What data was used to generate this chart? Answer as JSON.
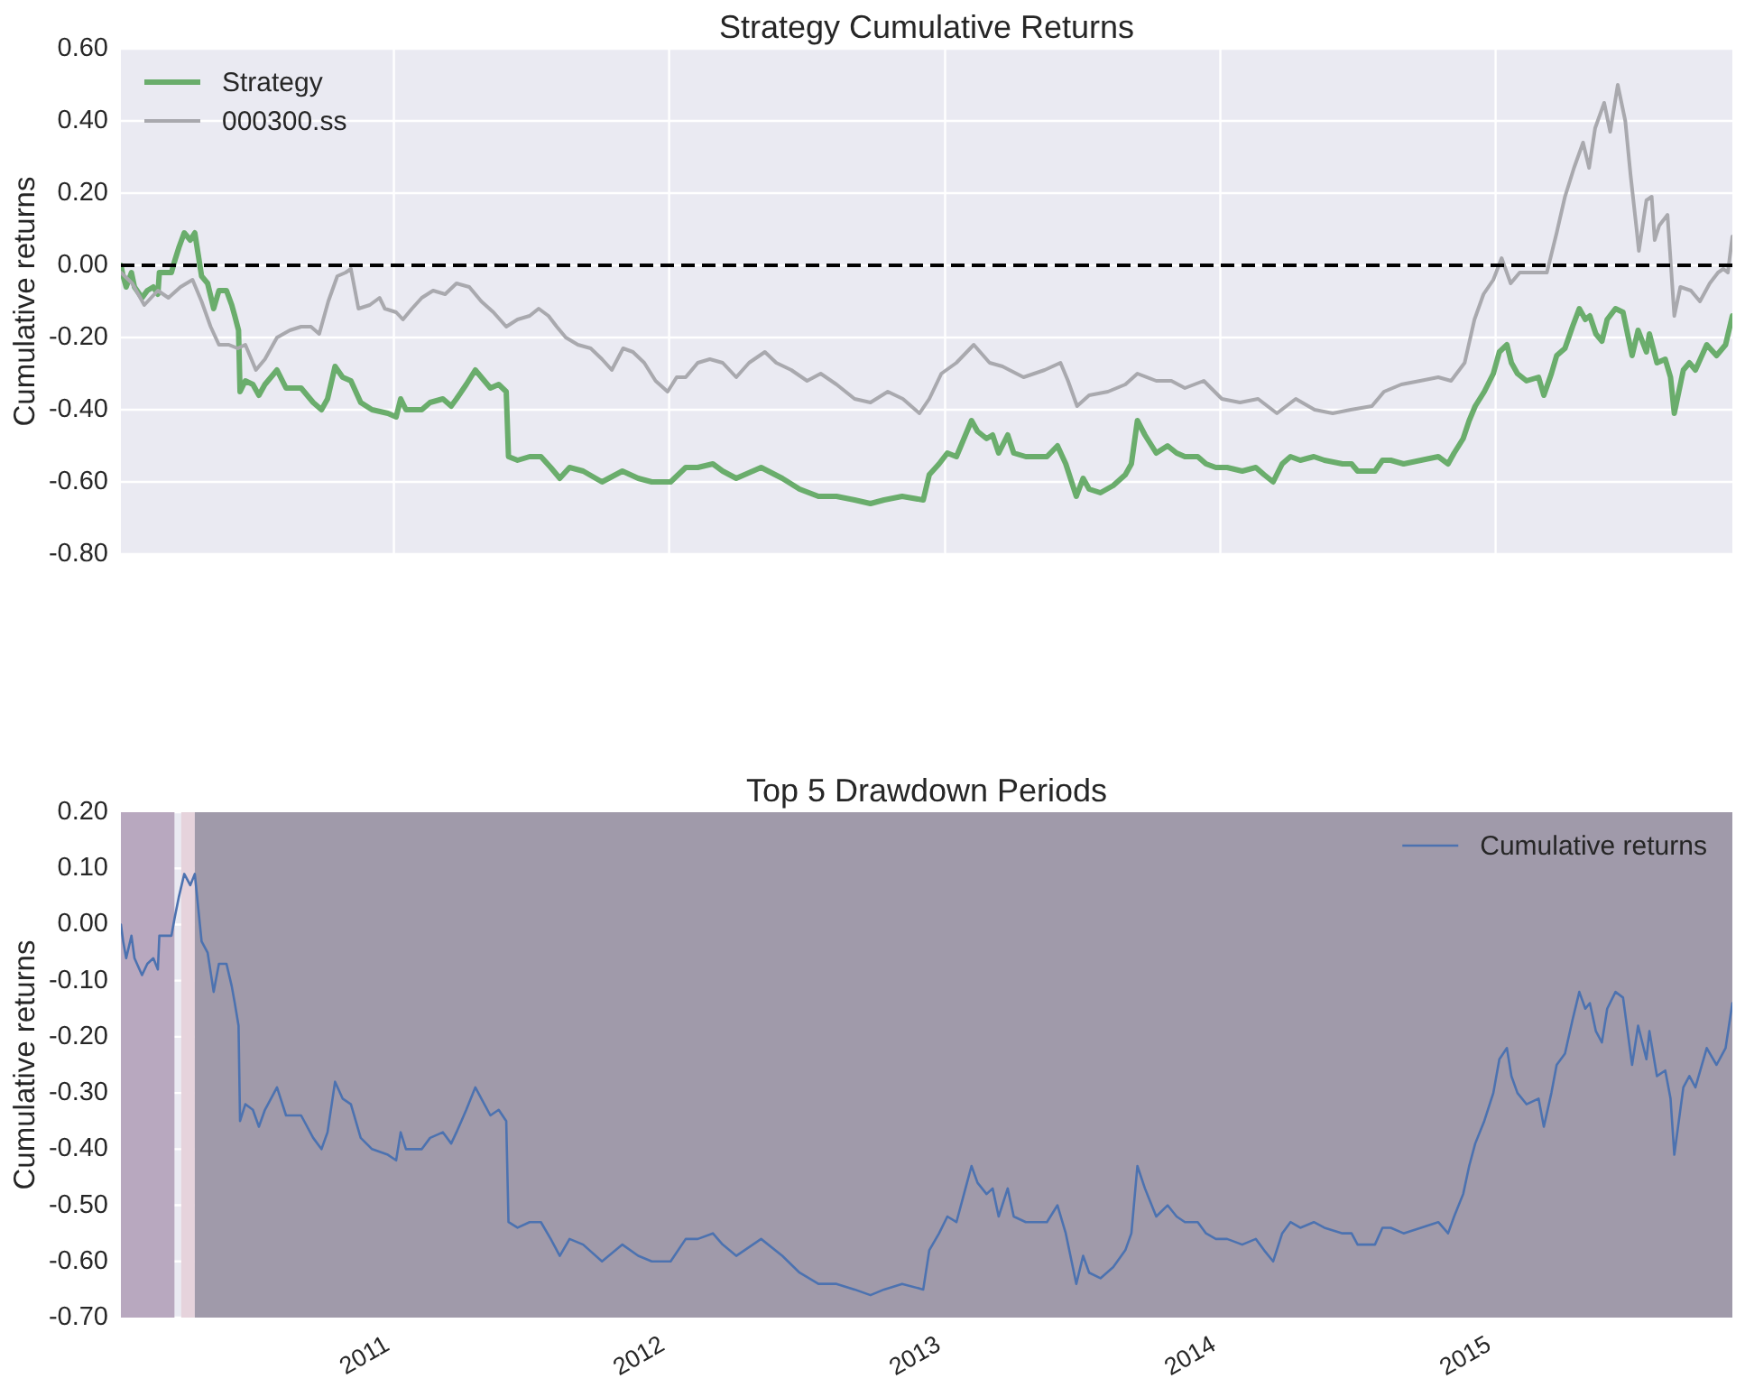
{
  "chart_data": [
    {
      "type": "line",
      "title": "Strategy Cumulative Returns",
      "ylabel": "Cumulative returns",
      "xlim": [
        "2010-01-04",
        "2015-11-11"
      ],
      "xticks": [
        "2011",
        "2012",
        "2013",
        "2014",
        "2015"
      ],
      "ylim": [
        -0.8,
        0.6
      ],
      "yticks": [
        {
          "value": -0.8,
          "label": "-0.80"
        },
        {
          "value": -0.6,
          "label": "-0.60"
        },
        {
          "value": -0.4,
          "label": "-0.40"
        },
        {
          "value": -0.2,
          "label": "-0.20"
        },
        {
          "value": 0,
          "label": "0.00"
        },
        {
          "value": 0.2,
          "label": "0.20"
        },
        {
          "value": 0.4,
          "label": "0.40"
        },
        {
          "value": 0.6,
          "label": "0.60"
        }
      ],
      "tick_labels": "y",
      "grid": true,
      "legend": "top left",
      "ref_lines": [
        {
          "axis": "y",
          "value": 0,
          "color": "#000000",
          "line_style": "dashed"
        }
      ],
      "series": [
        {
          "name": "Strategy",
          "color": "#6aad6c",
          "x": [
            "2010-01-04",
            "2010-01-07",
            "2010-01-11",
            "2010-01-18",
            "2010-01-22",
            "2010-02-01",
            "2010-02-08",
            "2010-02-16",
            "2010-02-22",
            "2010-02-24",
            "2010-03-12",
            "2010-03-16",
            "2010-03-22",
            "2010-03-29",
            "2010-04-06",
            "2010-04-12",
            "2010-04-21",
            "2010-04-29",
            "2010-05-07",
            "2010-05-14",
            "2010-05-24",
            "2010-05-31",
            "2010-06-04",
            "2010-06-09",
            "2010-06-11",
            "2010-06-18",
            "2010-06-28",
            "2010-07-06",
            "2010-07-14",
            "2010-07-30",
            "2010-08-11",
            "2010-08-31",
            "2010-09-16",
            "2010-09-27",
            "2010-10-05",
            "2010-10-15",
            "2010-10-25",
            "2010-11-05",
            "2010-11-18",
            "2010-12-03",
            "2010-12-24",
            "2011-01-04",
            "2011-01-10",
            "2011-01-17",
            "2011-02-07",
            "2011-02-18",
            "2011-03-07",
            "2011-03-18",
            "2011-03-25",
            "2011-04-07",
            "2011-04-19",
            "2011-04-27",
            "2011-05-09",
            "2011-05-20",
            "2011-05-30",
            "2011-06-02",
            "2011-06-14",
            "2011-06-30",
            "2011-07-15",
            "2011-07-28",
            "2011-08-09",
            "2011-08-22",
            "2011-09-09",
            "2011-10-04",
            "2011-10-31",
            "2011-11-21",
            "2011-12-09",
            "2012-01-03",
            "2012-01-23",
            "2012-02-08",
            "2012-02-28",
            "2012-03-12",
            "2012-03-30",
            "2012-05-02",
            "2012-05-30",
            "2012-06-22",
            "2012-07-17",
            "2012-08-10",
            "2012-09-03",
            "2012-09-24",
            "2012-10-12",
            "2012-11-05",
            "2012-12-03",
            "2012-12-11",
            "2012-12-24",
            "2013-01-04",
            "2013-01-16",
            "2013-01-28",
            "2013-02-05",
            "2013-02-13",
            "2013-02-25",
            "2013-03-05",
            "2013-03-13",
            "2013-03-25",
            "2013-04-02",
            "2013-04-18",
            "2013-04-30",
            "2013-05-16",
            "2013-05-30",
            "2013-06-10",
            "2013-06-24",
            "2013-07-03",
            "2013-07-11",
            "2013-07-26",
            "2013-08-12",
            "2013-08-28",
            "2013-09-05",
            "2013-09-13",
            "2013-09-23",
            "2013-10-08",
            "2013-10-23",
            "2013-11-04",
            "2013-11-15",
            "2013-12-02",
            "2013-12-13",
            "2013-12-26",
            "2014-01-10",
            "2014-01-30",
            "2014-02-17",
            "2014-02-28",
            "2014-03-12",
            "2014-03-24",
            "2014-04-04",
            "2014-04-17",
            "2014-05-05",
            "2014-05-19",
            "2014-06-12",
            "2014-06-24",
            "2014-07-02",
            "2014-07-25",
            "2014-08-04",
            "2014-08-15",
            "2014-09-01",
            "2014-09-24",
            "2014-10-17",
            "2014-10-30",
            "2014-11-07",
            "2014-11-19",
            "2014-11-27",
            "2014-12-05",
            "2014-12-17",
            "2014-12-29",
            "2015-01-06",
            "2015-01-16",
            "2015-01-22",
            "2015-01-30",
            "2015-02-11",
            "2015-02-27",
            "2015-03-06",
            "2015-03-16",
            "2015-03-23",
            "2015-04-03",
            "2015-04-13",
            "2015-04-22",
            "2015-04-30",
            "2015-05-06",
            "2015-05-14",
            "2015-05-22",
            "2015-05-29",
            "2015-06-09",
            "2015-06-19",
            "2015-06-25",
            "2015-07-01",
            "2015-07-09",
            "2015-07-20",
            "2015-07-24",
            "2015-08-03",
            "2015-08-14",
            "2015-08-21",
            "2015-08-26",
            "2015-09-07",
            "2015-09-15",
            "2015-09-23",
            "2015-10-08",
            "2015-10-21",
            "2015-11-02",
            "2015-11-11"
          ],
          "values": [
            0.0,
            -0.03,
            -0.06,
            -0.02,
            -0.06,
            -0.09,
            -0.07,
            -0.06,
            -0.08,
            -0.02,
            -0.02,
            0.01,
            0.05,
            0.09,
            0.07,
            0.09,
            -0.03,
            -0.05,
            -0.12,
            -0.07,
            -0.07,
            -0.11,
            -0.14,
            -0.18,
            -0.35,
            -0.32,
            -0.33,
            -0.36,
            -0.33,
            -0.29,
            -0.34,
            -0.34,
            -0.38,
            -0.4,
            -0.37,
            -0.28,
            -0.31,
            -0.32,
            -0.38,
            -0.4,
            -0.41,
            -0.42,
            -0.37,
            -0.4,
            -0.4,
            -0.38,
            -0.37,
            -0.39,
            -0.37,
            -0.33,
            -0.29,
            -0.31,
            -0.34,
            -0.33,
            -0.35,
            -0.53,
            -0.54,
            -0.53,
            -0.53,
            -0.56,
            -0.59,
            -0.56,
            -0.57,
            -0.6,
            -0.57,
            -0.59,
            -0.6,
            -0.6,
            -0.56,
            -0.56,
            -0.55,
            -0.57,
            -0.59,
            -0.56,
            -0.59,
            -0.62,
            -0.64,
            -0.64,
            -0.65,
            -0.66,
            -0.65,
            -0.64,
            -0.65,
            -0.58,
            -0.55,
            -0.52,
            -0.53,
            -0.47,
            -0.43,
            -0.46,
            -0.48,
            -0.47,
            -0.52,
            -0.47,
            -0.52,
            -0.53,
            -0.53,
            -0.53,
            -0.5,
            -0.55,
            -0.64,
            -0.59,
            -0.62,
            -0.63,
            -0.61,
            -0.58,
            -0.55,
            -0.43,
            -0.47,
            -0.52,
            -0.5,
            -0.52,
            -0.53,
            -0.53,
            -0.55,
            -0.56,
            -0.56,
            -0.57,
            -0.56,
            -0.58,
            -0.6,
            -0.55,
            -0.53,
            -0.54,
            -0.53,
            -0.54,
            -0.55,
            -0.55,
            -0.57,
            -0.57,
            -0.54,
            -0.54,
            -0.55,
            -0.54,
            -0.53,
            -0.55,
            -0.52,
            -0.48,
            -0.43,
            -0.39,
            -0.35,
            -0.3,
            -0.24,
            -0.22,
            -0.27,
            -0.3,
            -0.32,
            -0.31,
            -0.36,
            -0.3,
            -0.25,
            -0.23,
            -0.17,
            -0.12,
            -0.15,
            -0.14,
            -0.19,
            -0.21,
            -0.15,
            -0.12,
            -0.13,
            -0.19,
            -0.25,
            -0.18,
            -0.24,
            -0.19,
            -0.27,
            -0.26,
            -0.31,
            -0.41,
            -0.29,
            -0.27,
            -0.29,
            -0.22,
            -0.25,
            -0.22,
            -0.14
          ]
        },
        {
          "name": "000300.ss",
          "color": "#a9a9ae",
          "x": [
            "2010-01-04",
            "2010-01-19",
            "2010-02-04",
            "2010-02-22",
            "2010-03-08",
            "2010-03-24",
            "2010-04-09",
            "2010-04-21",
            "2010-05-03",
            "2010-05-14",
            "2010-05-27",
            "2010-06-08",
            "2010-06-18",
            "2010-07-02",
            "2010-07-14",
            "2010-07-30",
            "2010-08-16",
            "2010-08-31",
            "2010-09-13",
            "2010-09-24",
            "2010-10-06",
            "2010-10-18",
            "2010-10-29",
            "2010-11-05",
            "2010-11-15",
            "2010-11-30",
            "2010-12-13",
            "2010-12-20",
            "2011-01-04",
            "2011-01-13",
            "2011-01-25",
            "2011-02-07",
            "2011-02-22",
            "2011-03-10",
            "2011-03-25",
            "2011-04-11",
            "2011-04-27",
            "2011-05-13",
            "2011-05-30",
            "2011-06-14",
            "2011-06-30",
            "2011-07-12",
            "2011-07-25",
            "2011-08-05",
            "2011-08-17",
            "2011-09-02",
            "2011-09-19",
            "2011-10-04",
            "2011-10-17",
            "2011-11-01",
            "2011-11-14",
            "2011-11-29",
            "2011-12-14",
            "2011-12-30",
            "2012-01-11",
            "2012-01-23",
            "2012-02-08",
            "2012-02-24",
            "2012-03-12",
            "2012-03-30",
            "2012-04-16",
            "2012-05-07",
            "2012-05-22",
            "2012-06-11",
            "2012-07-02",
            "2012-07-20",
            "2012-08-10",
            "2012-09-03",
            "2012-09-24",
            "2012-10-17",
            "2012-11-06",
            "2012-11-28",
            "2012-12-11",
            "2012-12-27",
            "2013-01-16",
            "2013-02-08",
            "2013-03-01",
            "2013-03-18",
            "2013-04-15",
            "2013-05-13",
            "2013-06-03",
            "2013-06-13",
            "2013-06-25",
            "2013-07-11",
            "2013-08-05",
            "2013-08-28",
            "2013-09-13",
            "2013-10-08",
            "2013-10-28",
            "2013-11-15",
            "2013-12-10",
            "2014-01-03",
            "2014-01-27",
            "2014-02-20",
            "2014-03-17",
            "2014-04-11",
            "2014-05-06",
            "2014-05-30",
            "2014-06-23",
            "2014-07-21",
            "2014-08-06",
            "2014-08-29",
            "2014-09-23",
            "2014-10-17",
            "2014-11-03",
            "2014-11-21",
            "2014-12-04",
            "2014-12-16",
            "2014-12-29",
            "2015-01-09",
            "2015-01-21",
            "2015-02-02",
            "2015-02-16",
            "2015-03-10",
            "2015-03-23",
            "2015-04-03",
            "2015-04-15",
            "2015-04-27",
            "2015-05-05",
            "2015-05-13",
            "2015-05-25",
            "2015-06-02",
            "2015-06-12",
            "2015-06-22",
            "2015-06-29",
            "2015-07-07",
            "2015-07-10",
            "2015-07-20",
            "2015-07-27",
            "2015-07-31",
            "2015-08-06",
            "2015-08-17",
            "2015-08-26",
            "2015-09-03",
            "2015-09-17",
            "2015-09-29",
            "2015-10-12",
            "2015-10-23",
            "2015-10-30",
            "2015-11-05",
            "2015-11-11"
          ],
          "values": [
            -0.02,
            -0.05,
            -0.11,
            -0.07,
            -0.09,
            -0.06,
            -0.04,
            -0.1,
            -0.17,
            -0.22,
            -0.22,
            -0.23,
            -0.22,
            -0.29,
            -0.26,
            -0.2,
            -0.18,
            -0.17,
            -0.17,
            -0.19,
            -0.1,
            -0.03,
            -0.02,
            -0.01,
            -0.12,
            -0.11,
            -0.09,
            -0.12,
            -0.13,
            -0.15,
            -0.12,
            -0.09,
            -0.07,
            -0.08,
            -0.05,
            -0.06,
            -0.1,
            -0.13,
            -0.17,
            -0.15,
            -0.14,
            -0.12,
            -0.14,
            -0.17,
            -0.2,
            -0.22,
            -0.23,
            -0.26,
            -0.29,
            -0.23,
            -0.24,
            -0.27,
            -0.32,
            -0.35,
            -0.31,
            -0.31,
            -0.27,
            -0.26,
            -0.27,
            -0.31,
            -0.27,
            -0.24,
            -0.27,
            -0.29,
            -0.32,
            -0.3,
            -0.33,
            -0.37,
            -0.38,
            -0.35,
            -0.37,
            -0.41,
            -0.37,
            -0.3,
            -0.27,
            -0.22,
            -0.27,
            -0.28,
            -0.31,
            -0.29,
            -0.27,
            -0.32,
            -0.39,
            -0.36,
            -0.35,
            -0.33,
            -0.3,
            -0.32,
            -0.32,
            -0.34,
            -0.32,
            -0.37,
            -0.38,
            -0.37,
            -0.41,
            -0.37,
            -0.4,
            -0.41,
            -0.4,
            -0.39,
            -0.35,
            -0.33,
            -0.32,
            -0.31,
            -0.32,
            -0.27,
            -0.15,
            -0.08,
            -0.04,
            0.02,
            -0.05,
            -0.02,
            -0.02,
            -0.02,
            0.09,
            0.19,
            0.27,
            0.34,
            0.27,
            0.38,
            0.45,
            0.37,
            0.5,
            0.4,
            0.25,
            0.1,
            0.04,
            0.18,
            0.19,
            0.07,
            0.11,
            0.14,
            -0.14,
            -0.06,
            -0.07,
            -0.1,
            -0.05,
            -0.02,
            -0.01,
            -0.02,
            0.08
          ]
        }
      ]
    },
    {
      "type": "line",
      "title": "Top 5 Drawdown Periods",
      "ylabel": "Cumulative returns",
      "xlim": [
        "2010-01-04",
        "2015-11-11"
      ],
      "xticks": [
        "2011",
        "2012",
        "2013",
        "2014",
        "2015"
      ],
      "ylim": [
        -0.7,
        0.2
      ],
      "yticks": [
        {
          "value": -0.7,
          "label": "-0.70"
        },
        {
          "value": -0.6,
          "label": "-0.60"
        },
        {
          "value": -0.5,
          "label": "-0.50"
        },
        {
          "value": -0.4,
          "label": "-0.40"
        },
        {
          "value": -0.3,
          "label": "-0.30"
        },
        {
          "value": -0.2,
          "label": "-0.20"
        },
        {
          "value": -0.1,
          "label": "-0.10"
        },
        {
          "value": 0,
          "label": "0.00"
        },
        {
          "value": 0.1,
          "label": "0.10"
        },
        {
          "value": 0.2,
          "label": "0.20"
        }
      ],
      "grid": true,
      "legend": "top right",
      "bands": [
        {
          "axis": "x",
          "from": "2010-01-04",
          "to": "2010-03-16",
          "color": "#b8a8bf"
        },
        {
          "axis": "x",
          "from": "2010-03-25",
          "to": "2010-04-12",
          "color": "#e6d3dc"
        },
        {
          "axis": "x",
          "from": "2010-04-12",
          "to": "2015-11-11",
          "color": "#a09aaa"
        }
      ],
      "series": [
        {
          "name": "Cumulative returns",
          "color": "#4c72b0",
          "x": [
            "2010-01-04",
            "2010-01-07",
            "2010-01-11",
            "2010-01-18",
            "2010-01-22",
            "2010-02-01",
            "2010-02-08",
            "2010-02-16",
            "2010-02-22",
            "2010-02-24",
            "2010-03-12",
            "2010-03-16",
            "2010-03-22",
            "2010-03-29",
            "2010-04-06",
            "2010-04-12",
            "2010-04-21",
            "2010-04-29",
            "2010-05-07",
            "2010-05-14",
            "2010-05-24",
            "2010-05-31",
            "2010-06-04",
            "2010-06-09",
            "2010-06-11",
            "2010-06-18",
            "2010-06-28",
            "2010-07-06",
            "2010-07-14",
            "2010-07-30",
            "2010-08-11",
            "2010-08-31",
            "2010-09-16",
            "2010-09-27",
            "2010-10-05",
            "2010-10-15",
            "2010-10-25",
            "2010-11-05",
            "2010-11-18",
            "2010-12-03",
            "2010-12-24",
            "2011-01-04",
            "2011-01-10",
            "2011-01-17",
            "2011-02-07",
            "2011-02-18",
            "2011-03-07",
            "2011-03-18",
            "2011-03-25",
            "2011-04-07",
            "2011-04-19",
            "2011-04-27",
            "2011-05-09",
            "2011-05-20",
            "2011-05-30",
            "2011-06-02",
            "2011-06-14",
            "2011-06-30",
            "2011-07-15",
            "2011-07-28",
            "2011-08-09",
            "2011-08-22",
            "2011-09-09",
            "2011-10-04",
            "2011-10-31",
            "2011-11-21",
            "2011-12-09",
            "2012-01-03",
            "2012-01-23",
            "2012-02-08",
            "2012-02-28",
            "2012-03-12",
            "2012-03-30",
            "2012-05-02",
            "2012-05-30",
            "2012-06-22",
            "2012-07-17",
            "2012-08-10",
            "2012-09-03",
            "2012-09-24",
            "2012-10-12",
            "2012-11-05",
            "2012-12-03",
            "2012-12-11",
            "2012-12-24",
            "2013-01-04",
            "2013-01-16",
            "2013-01-28",
            "2013-02-05",
            "2013-02-13",
            "2013-02-25",
            "2013-03-05",
            "2013-03-13",
            "2013-03-25",
            "2013-04-02",
            "2013-04-18",
            "2013-04-30",
            "2013-05-16",
            "2013-05-30",
            "2013-06-10",
            "2013-06-24",
            "2013-07-03",
            "2013-07-11",
            "2013-07-26",
            "2013-08-12",
            "2013-08-28",
            "2013-09-05",
            "2013-09-13",
            "2013-09-23",
            "2013-10-08",
            "2013-10-23",
            "2013-11-04",
            "2013-11-15",
            "2013-12-02",
            "2013-12-13",
            "2013-12-26",
            "2014-01-10",
            "2014-01-30",
            "2014-02-17",
            "2014-02-28",
            "2014-03-12",
            "2014-03-24",
            "2014-04-04",
            "2014-04-17",
            "2014-05-05",
            "2014-05-19",
            "2014-06-12",
            "2014-06-24",
            "2014-07-02",
            "2014-07-25",
            "2014-08-04",
            "2014-08-15",
            "2014-09-01",
            "2014-09-24",
            "2014-10-17",
            "2014-10-30",
            "2014-11-07",
            "2014-11-19",
            "2014-11-27",
            "2014-12-05",
            "2014-12-17",
            "2014-12-29",
            "2015-01-06",
            "2015-01-16",
            "2015-01-22",
            "2015-01-30",
            "2015-02-11",
            "2015-02-27",
            "2015-03-06",
            "2015-03-16",
            "2015-03-23",
            "2015-04-03",
            "2015-04-13",
            "2015-04-22",
            "2015-04-30",
            "2015-05-06",
            "2015-05-14",
            "2015-05-22",
            "2015-05-29",
            "2015-06-09",
            "2015-06-19",
            "2015-06-25",
            "2015-07-01",
            "2015-07-09",
            "2015-07-20",
            "2015-07-24",
            "2015-08-03",
            "2015-08-14",
            "2015-08-21",
            "2015-08-26",
            "2015-09-07",
            "2015-09-15",
            "2015-09-23",
            "2015-10-08",
            "2015-10-21",
            "2015-11-02",
            "2015-11-11"
          ],
          "values": [
            0.0,
            -0.03,
            -0.06,
            -0.02,
            -0.06,
            -0.09,
            -0.07,
            -0.06,
            -0.08,
            -0.02,
            -0.02,
            0.01,
            0.05,
            0.09,
            0.07,
            0.09,
            -0.03,
            -0.05,
            -0.12,
            -0.07,
            -0.07,
            -0.11,
            -0.14,
            -0.18,
            -0.35,
            -0.32,
            -0.33,
            -0.36,
            -0.33,
            -0.29,
            -0.34,
            -0.34,
            -0.38,
            -0.4,
            -0.37,
            -0.28,
            -0.31,
            -0.32,
            -0.38,
            -0.4,
            -0.41,
            -0.42,
            -0.37,
            -0.4,
            -0.4,
            -0.38,
            -0.37,
            -0.39,
            -0.37,
            -0.33,
            -0.29,
            -0.31,
            -0.34,
            -0.33,
            -0.35,
            -0.53,
            -0.54,
            -0.53,
            -0.53,
            -0.56,
            -0.59,
            -0.56,
            -0.57,
            -0.6,
            -0.57,
            -0.59,
            -0.6,
            -0.6,
            -0.56,
            -0.56,
            -0.55,
            -0.57,
            -0.59,
            -0.56,
            -0.59,
            -0.62,
            -0.64,
            -0.64,
            -0.65,
            -0.66,
            -0.65,
            -0.64,
            -0.65,
            -0.58,
            -0.55,
            -0.52,
            -0.53,
            -0.47,
            -0.43,
            -0.46,
            -0.48,
            -0.47,
            -0.52,
            -0.47,
            -0.52,
            -0.53,
            -0.53,
            -0.53,
            -0.5,
            -0.55,
            -0.64,
            -0.59,
            -0.62,
            -0.63,
            -0.61,
            -0.58,
            -0.55,
            -0.43,
            -0.47,
            -0.52,
            -0.5,
            -0.52,
            -0.53,
            -0.53,
            -0.55,
            -0.56,
            -0.56,
            -0.57,
            -0.56,
            -0.58,
            -0.6,
            -0.55,
            -0.53,
            -0.54,
            -0.53,
            -0.54,
            -0.55,
            -0.55,
            -0.57,
            -0.57,
            -0.54,
            -0.54,
            -0.55,
            -0.54,
            -0.53,
            -0.55,
            -0.52,
            -0.48,
            -0.43,
            -0.39,
            -0.35,
            -0.3,
            -0.24,
            -0.22,
            -0.27,
            -0.3,
            -0.32,
            -0.31,
            -0.36,
            -0.3,
            -0.25,
            -0.23,
            -0.17,
            -0.12,
            -0.15,
            -0.14,
            -0.19,
            -0.21,
            -0.15,
            -0.12,
            -0.13,
            -0.19,
            -0.25,
            -0.18,
            -0.24,
            -0.19,
            -0.27,
            -0.26,
            -0.31,
            -0.41,
            -0.29,
            -0.27,
            -0.29,
            -0.22,
            -0.25,
            -0.22,
            -0.14
          ]
        }
      ]
    }
  ]
}
